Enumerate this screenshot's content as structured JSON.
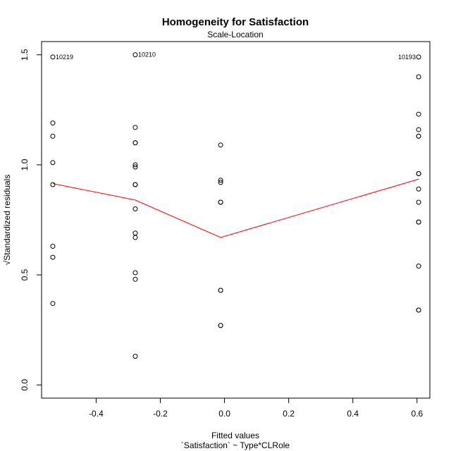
{
  "chart_data": {
    "type": "scatter",
    "title": "Homogeneity for Satisfaction",
    "subtitle": "Scale-Location",
    "xlabel": "Fitted values",
    "xlabel_sub": "`Satisfaction` ~ Type*CLRole",
    "ylabel": "√Standardized residuals",
    "xlim": [
      -0.57,
      0.64
    ],
    "ylim": [
      -0.06,
      1.56
    ],
    "x_ticks": [
      -0.4,
      -0.2,
      0.0,
      0.2,
      0.4,
      0.6
    ],
    "x_tick_labels": [
      "-0.4",
      "-0.2",
      "0.0",
      "0.2",
      "0.4",
      "0.6"
    ],
    "y_ticks": [
      0.0,
      0.5,
      1.0,
      1.5
    ],
    "y_tick_labels": [
      "0.0",
      "0.5",
      "1.0",
      "1.5"
    ],
    "grid": false,
    "series": [
      {
        "marker": "open-circle",
        "color": "#000000",
        "points": [
          {
            "x": -0.535,
            "y": 1.49,
            "label": "10219"
          },
          {
            "x": -0.535,
            "y": 1.19
          },
          {
            "x": -0.535,
            "y": 1.13
          },
          {
            "x": -0.535,
            "y": 1.01
          },
          {
            "x": -0.535,
            "y": 0.91
          },
          {
            "x": -0.535,
            "y": 0.63
          },
          {
            "x": -0.535,
            "y": 0.58
          },
          {
            "x": -0.535,
            "y": 0.37
          },
          {
            "x": -0.278,
            "y": 1.5,
            "label": "10210"
          },
          {
            "x": -0.278,
            "y": 1.17
          },
          {
            "x": -0.278,
            "y": 1.1
          },
          {
            "x": -0.278,
            "y": 1.1
          },
          {
            "x": -0.278,
            "y": 1.0
          },
          {
            "x": -0.278,
            "y": 0.99
          },
          {
            "x": -0.278,
            "y": 0.91
          },
          {
            "x": -0.278,
            "y": 0.91
          },
          {
            "x": -0.278,
            "y": 0.8
          },
          {
            "x": -0.278,
            "y": 0.69
          },
          {
            "x": -0.278,
            "y": 0.67
          },
          {
            "x": -0.278,
            "y": 0.51
          },
          {
            "x": -0.278,
            "y": 0.48
          },
          {
            "x": -0.278,
            "y": 0.13
          },
          {
            "x": -0.012,
            "y": 1.09
          },
          {
            "x": -0.012,
            "y": 0.93
          },
          {
            "x": -0.012,
            "y": 0.92
          },
          {
            "x": -0.012,
            "y": 0.83
          },
          {
            "x": -0.012,
            "y": 0.83
          },
          {
            "x": -0.012,
            "y": 0.43
          },
          {
            "x": -0.012,
            "y": 0.43
          },
          {
            "x": -0.012,
            "y": 0.27
          },
          {
            "x": -0.012,
            "y": 0.27
          },
          {
            "x": 0.605,
            "y": 1.49,
            "label": "10193",
            "label_side": "left"
          },
          {
            "x": 0.605,
            "y": 1.4
          },
          {
            "x": 0.605,
            "y": 1.23
          },
          {
            "x": 0.605,
            "y": 1.16
          },
          {
            "x": 0.605,
            "y": 1.13
          },
          {
            "x": 0.605,
            "y": 1.13
          },
          {
            "x": 0.605,
            "y": 0.96
          },
          {
            "x": 0.605,
            "y": 0.96
          },
          {
            "x": 0.605,
            "y": 0.89
          },
          {
            "x": 0.605,
            "y": 0.83
          },
          {
            "x": 0.605,
            "y": 0.74
          },
          {
            "x": 0.605,
            "y": 0.74
          },
          {
            "x": 0.605,
            "y": 0.54
          },
          {
            "x": 0.605,
            "y": 0.34
          },
          {
            "x": 0.605,
            "y": 0.34
          }
        ]
      },
      {
        "type": "line",
        "color": "#ff0000",
        "points": [
          {
            "x": -0.535,
            "y": 0.915
          },
          {
            "x": -0.278,
            "y": 0.84
          },
          {
            "x": -0.012,
            "y": 0.67
          },
          {
            "x": 0.605,
            "y": 0.935
          }
        ]
      }
    ]
  }
}
